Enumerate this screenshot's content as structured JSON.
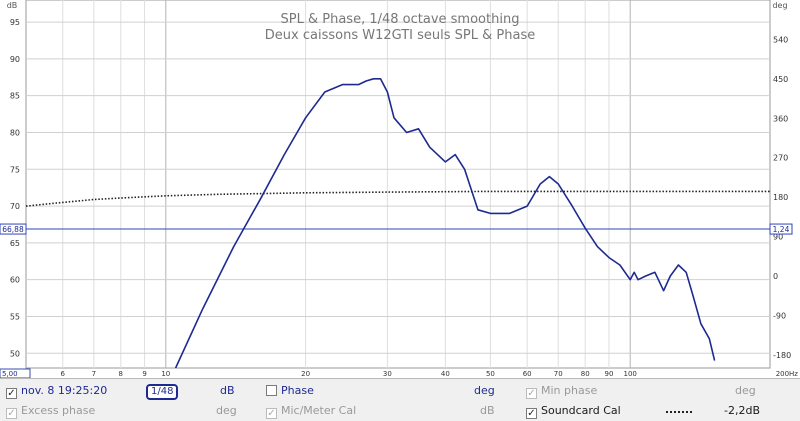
{
  "chart_data": {
    "type": "line",
    "title": "SPL & Phase, 1/48 octave smoothing",
    "subtitle": "Deux caissons W12GTI seuls SPL & Phase",
    "x_unit": "Hz",
    "left_unit": "dB",
    "right_unit": "deg",
    "x_scale": "log",
    "xlim": [
      5,
      200
    ],
    "ylim_left": [
      48,
      98
    ],
    "ylim_right": [
      -210,
      630
    ],
    "x_ticks": [
      {
        "value": 5,
        "label": "5,00"
      },
      {
        "value": 6,
        "label": "6"
      },
      {
        "value": 7,
        "label": "7"
      },
      {
        "value": 8,
        "label": "8"
      },
      {
        "value": 9,
        "label": "9"
      },
      {
        "value": 10,
        "label": "10"
      },
      {
        "value": 20,
        "label": "20"
      },
      {
        "value": 30,
        "label": "30"
      },
      {
        "value": 40,
        "label": "40"
      },
      {
        "value": 50,
        "label": "50"
      },
      {
        "value": 60,
        "label": "60"
      },
      {
        "value": 70,
        "label": "70"
      },
      {
        "value": 80,
        "label": "80"
      },
      {
        "value": 90,
        "label": "90"
      },
      {
        "value": 100,
        "label": "100"
      },
      {
        "value": 200,
        "label": "200Hz"
      }
    ],
    "y_ticks_left": [
      50,
      55,
      60,
      65,
      70,
      75,
      80,
      85,
      90,
      95
    ],
    "y_ticks_right": [
      -180,
      -90,
      0,
      90,
      180,
      270,
      360,
      450,
      540
    ],
    "cursor_left_label": "66,88",
    "cursor_right_label": "1,24",
    "cursor_value": 66.88,
    "grid": true,
    "series": [
      {
        "name": "nov. 8 19:25:20",
        "color": "#1e2a90",
        "x": [
          10.5,
          12,
          14,
          16,
          18,
          20,
          22,
          24,
          26,
          27,
          28,
          29,
          30,
          31,
          33,
          35,
          37,
          40,
          42,
          44,
          47,
          50,
          55,
          60,
          64,
          67,
          70,
          75,
          80,
          85,
          90,
          95,
          100,
          102,
          104,
          108,
          113,
          118,
          122,
          127,
          132,
          137,
          142,
          148,
          152
        ],
        "values": [
          48,
          56,
          64.5,
          71,
          77,
          82,
          85.5,
          86.5,
          86.5,
          87,
          87.3,
          87.3,
          85.5,
          82,
          80,
          80.5,
          78,
          76,
          77,
          75,
          69.5,
          69,
          69,
          70,
          73,
          74,
          73,
          70,
          67,
          64.5,
          63,
          62,
          60,
          61,
          60,
          60.5,
          61,
          58.5,
          60.5,
          62,
          61,
          57.5,
          54,
          52,
          49
        ]
      },
      {
        "name": "Soundcard Cal",
        "color": "#222222",
        "value_label": "-2,2dB",
        "x": [
          5,
          6,
          7,
          8,
          10,
          13,
          16,
          20,
          30,
          50,
          100,
          200
        ],
        "values": [
          70,
          70.5,
          70.9,
          71.1,
          71.4,
          71.6,
          71.7,
          71.8,
          71.9,
          72,
          72,
          72
        ]
      }
    ]
  },
  "legend": {
    "row1": {
      "measurement_label": "nov. 8 19:25:20",
      "smoothing_label": "1/48",
      "db_unit": "dB",
      "phase_label": "Phase",
      "phase_unit": "deg",
      "min_phase_label": "Min phase",
      "min_phase_unit": "deg"
    },
    "row2": {
      "excess_phase_label": "Excess phase",
      "excess_phase_unit": "deg",
      "mic_cal_label": "Mic/Meter Cal",
      "mic_cal_unit": "dB",
      "soundcard_cal_label": "Soundcard Cal",
      "soundcard_value": "-2,2dB"
    },
    "checked_mark": "✓"
  }
}
